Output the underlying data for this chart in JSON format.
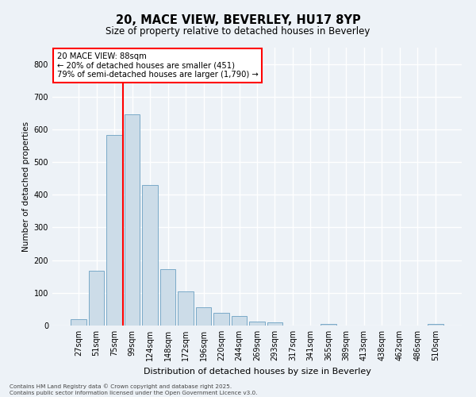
{
  "title": "20, MACE VIEW, BEVERLEY, HU17 8YP",
  "subtitle": "Size of property relative to detached houses in Beverley",
  "xlabel": "Distribution of detached houses by size in Beverley",
  "ylabel": "Number of detached properties",
  "categories": [
    "27sqm",
    "51sqm",
    "75sqm",
    "99sqm",
    "124sqm",
    "148sqm",
    "172sqm",
    "196sqm",
    "220sqm",
    "244sqm",
    "269sqm",
    "293sqm",
    "317sqm",
    "341sqm",
    "365sqm",
    "389sqm",
    "413sqm",
    "438sqm",
    "462sqm",
    "486sqm",
    "510sqm"
  ],
  "values": [
    20,
    168,
    583,
    645,
    430,
    172,
    105,
    55,
    40,
    30,
    13,
    10,
    0,
    0,
    5,
    0,
    0,
    0,
    0,
    0,
    6
  ],
  "bar_color": "#ccdce8",
  "bar_edge_color": "#7aaac8",
  "vline_color": "red",
  "vline_pos": 2.5,
  "annotation_text": "20 MACE VIEW: 88sqm\n← 20% of detached houses are smaller (451)\n79% of semi-detached houses are larger (1,790) →",
  "annotation_box_color": "white",
  "annotation_box_edge_color": "red",
  "ylim": [
    0,
    850
  ],
  "yticks": [
    0,
    100,
    200,
    300,
    400,
    500,
    600,
    700,
    800
  ],
  "background_color": "#edf2f7",
  "grid_color": "white",
  "footer_line1": "Contains HM Land Registry data © Crown copyright and database right 2025.",
  "footer_line2": "Contains public sector information licensed under the Open Government Licence v3.0."
}
